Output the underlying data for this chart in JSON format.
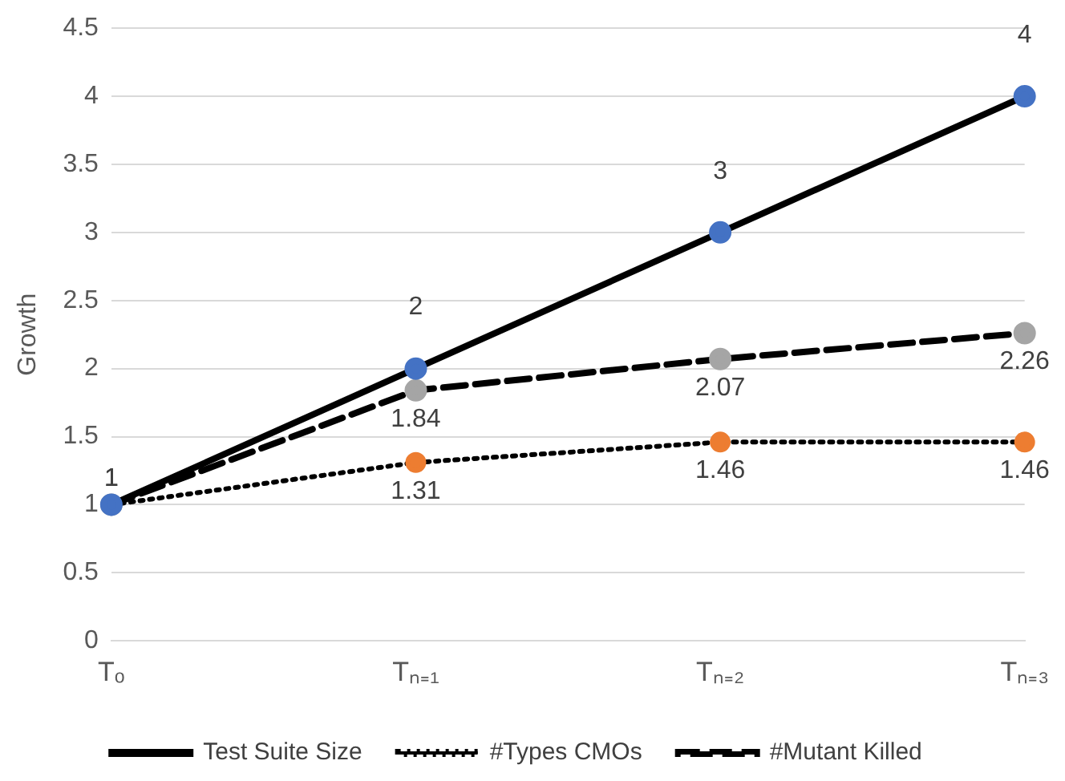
{
  "chart_data": {
    "type": "line",
    "ylabel": "Growth",
    "categories": [
      "Tₒ",
      "Tₙ₌₁",
      "Tₙ₌₂",
      "Tₙ₌₃"
    ],
    "series": [
      {
        "name": "Test Suite Size",
        "color": "#4472c4",
        "line_style": "solid",
        "values": [
          1,
          2,
          3,
          4
        ],
        "value_labels": [
          "1",
          "2",
          "3",
          "4"
        ]
      },
      {
        "name": "#Types CMOs",
        "color": "#ed7d31",
        "line_style": "dotted",
        "values": [
          1,
          1.31,
          1.46,
          1.46
        ],
        "value_labels": [
          null,
          "1.31",
          "1.46",
          "1.46"
        ]
      },
      {
        "name": "#Mutant Killed",
        "color": "#a5a5a5",
        "line_style": "dashed",
        "values": [
          1,
          1.84,
          2.07,
          2.26
        ],
        "value_labels": [
          "1",
          "1.84",
          "2.07",
          "2.26"
        ]
      }
    ],
    "ylim": [
      0,
      4.5
    ],
    "yticks": [
      0,
      0.5,
      1,
      1.5,
      2,
      2.5,
      3,
      3.5,
      4,
      4.5
    ],
    "grid": "y",
    "legend": "bottom",
    "marker": "circle"
  }
}
